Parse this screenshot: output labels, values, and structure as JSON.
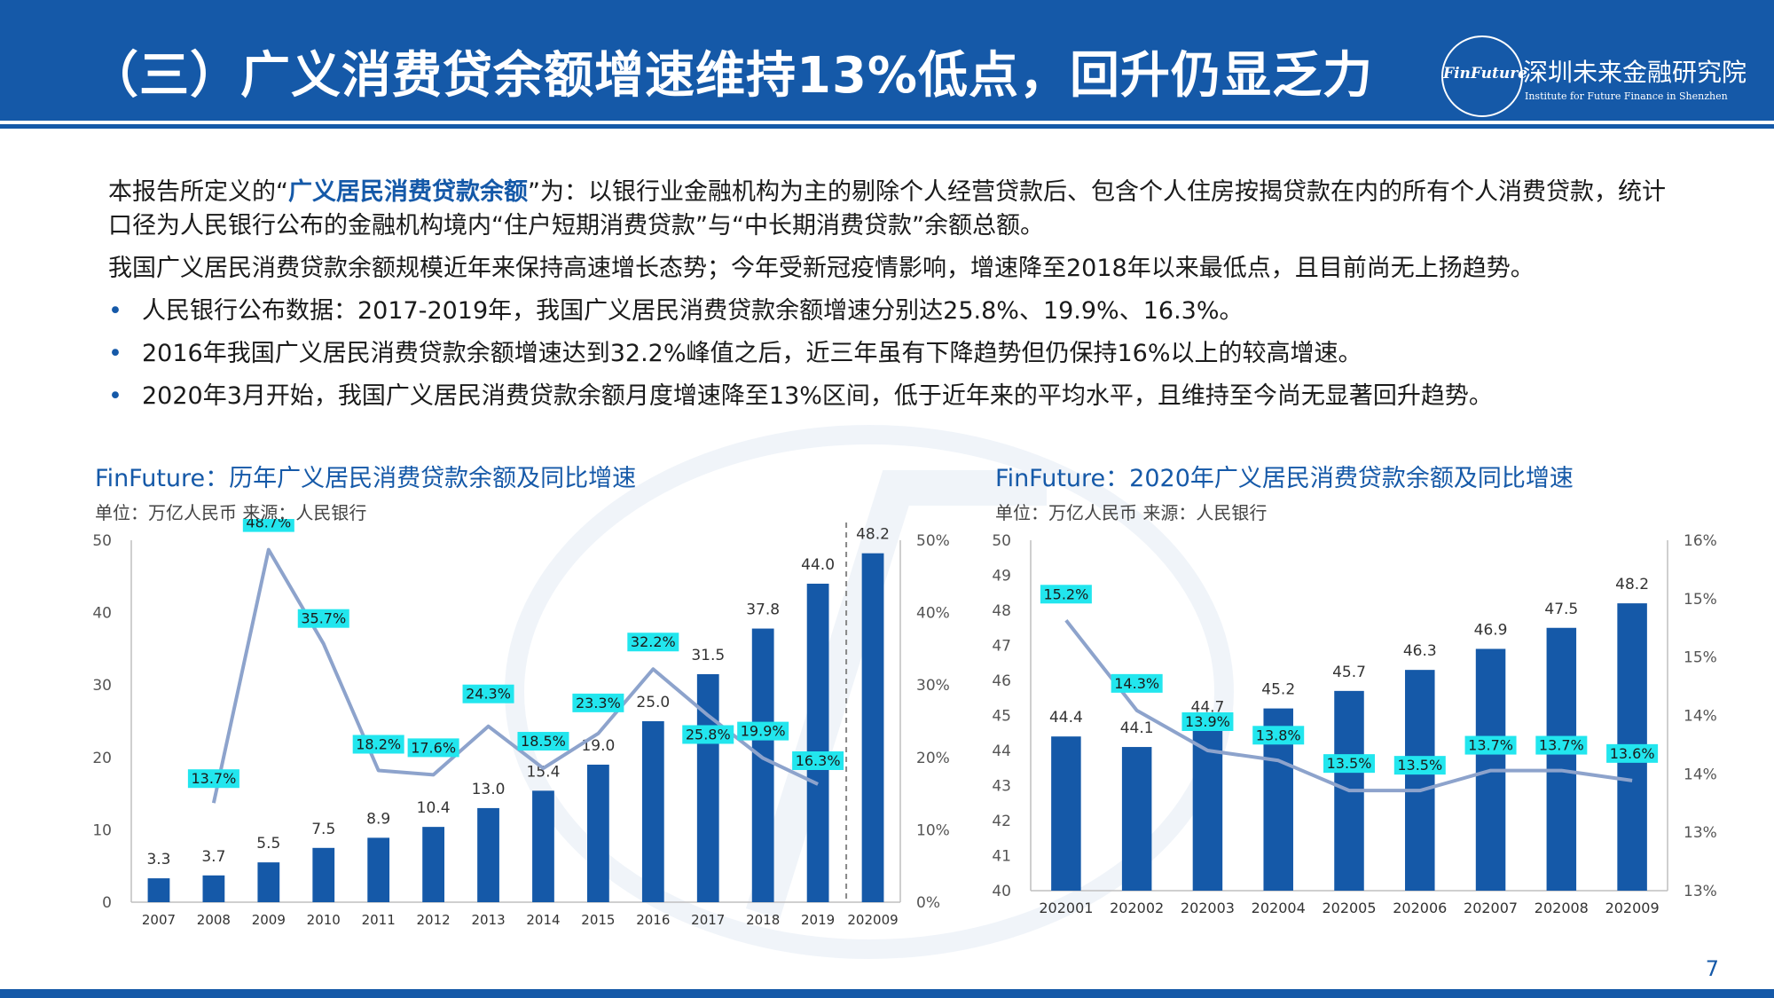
{
  "slide": {
    "title": "（三）广义消费贷余额增速维持13%低点，回升仍显乏力",
    "logo": {
      "mark": "FinFuture",
      "name": "深圳未来金融研究院",
      "subtitle": "Institute for Future Finance in Shenzhen"
    },
    "definition": {
      "prefix": "本报告所定义的“",
      "highlight": "广义居民消费贷款余额",
      "suffix": "”为：以银行业金融机构为主的剔除个人经营贷款后、包含个人住房按揭贷款在内的所有个人消费贷款，统计口径为人民银行公布的金融机构境内“住户短期消费贷款”与“中长期消费贷款”余额总额。"
    },
    "summary": "我国广义居民消费贷款余额规模近年来保持高速增长态势；今年受新冠疫情影响，增速降至2018年以来最低点，且目前尚无上扬趋势。",
    "bullets": [
      "人民银行公布数据：2017-2019年，我国广义居民消费贷款余额增速分别达25.8%、19.9%、16.3%。",
      "2016年我国广义居民消费贷款余额增速达到32.2%峰值之后，近三年虽有下降趋势但仍保持16%以上的较高增速。",
      "2020年3月开始，我国广义居民消费贷款余额月度增速降至13%区间，低于近年来的平均水平，且维持至今尚无显著回升趋势。"
    ],
    "page_number": "7",
    "colors": {
      "brand": "#1559a8",
      "line": "#8da3cc",
      "label_bg": "#22e6ee"
    }
  },
  "chart_data": [
    {
      "type": "bar",
      "title": "FinFuture：历年广义居民消费贷款余额及同比增速",
      "subtitle": "单位：万亿人民币  来源：人民银行",
      "categories": [
        "2007",
        "2008",
        "2009",
        "2010",
        "2011",
        "2012",
        "2013",
        "2014",
        "2015",
        "2016",
        "2017",
        "2018",
        "2019",
        "202009"
      ],
      "series": [
        {
          "name": "余额",
          "type": "bar",
          "axis": "left",
          "values": [
            3.3,
            3.7,
            5.5,
            7.5,
            8.9,
            10.4,
            13.0,
            15.4,
            19.0,
            25.0,
            31.5,
            37.8,
            44.0,
            48.2
          ],
          "labels": [
            "3.3",
            "3.7",
            "5.5",
            "7.5",
            "8.9",
            "10.4",
            "13.0",
            "15.4",
            "19.0",
            "25.0",
            "31.5",
            "37.8",
            "44.0",
            "48.2"
          ]
        },
        {
          "name": "同比增速",
          "type": "line",
          "axis": "right",
          "values": [
            null,
            13.7,
            48.7,
            35.7,
            18.2,
            17.6,
            24.3,
            18.5,
            23.3,
            32.2,
            25.8,
            19.9,
            16.3,
            null
          ],
          "labels": [
            null,
            "13.7%",
            "48.7%",
            "35.7%",
            "18.2%",
            "17.6%",
            "24.3%",
            "18.5%",
            "23.3%",
            "32.2%",
            "25.8%",
            "19.9%",
            "16.3%",
            null
          ]
        }
      ],
      "left_axis": {
        "min": 0,
        "max": 50,
        "ticks": [
          "0",
          "10",
          "20",
          "30",
          "40",
          "50"
        ]
      },
      "right_axis": {
        "min": 0,
        "max": 50,
        "ticks": [
          "0%",
          "10%",
          "20%",
          "30%",
          "40%",
          "50%"
        ]
      },
      "separator_before_last": true
    },
    {
      "type": "bar",
      "title": "FinFuture：2020年广义居民消费贷款余额及同比增速",
      "subtitle": "单位：万亿人民币  来源：人民银行",
      "categories": [
        "202001",
        "202002",
        "202003",
        "202004",
        "202005",
        "202006",
        "202007",
        "202008",
        "202009"
      ],
      "series": [
        {
          "name": "余额",
          "type": "bar",
          "axis": "left",
          "values": [
            44.4,
            44.1,
            44.7,
            45.2,
            45.7,
            46.3,
            46.9,
            47.5,
            48.2
          ],
          "labels": [
            "44.4",
            "44.1",
            "44.7",
            "45.2",
            "45.7",
            "46.3",
            "46.9",
            "47.5",
            "48.2"
          ]
        },
        {
          "name": "同比增速",
          "type": "line",
          "axis": "right",
          "values": [
            15.2,
            14.3,
            13.9,
            13.8,
            13.5,
            13.5,
            13.7,
            13.7,
            13.6
          ],
          "labels": [
            "15.2%",
            "14.3%",
            "13.9%",
            "13.8%",
            "13.5%",
            "13.5%",
            "13.7%",
            "13.7%",
            "13.6%"
          ]
        }
      ],
      "left_axis": {
        "min": 40,
        "max": 50,
        "ticks": [
          "40",
          "41",
          "42",
          "43",
          "44",
          "45",
          "46",
          "47",
          "48",
          "49",
          "50"
        ]
      },
      "right_axis": {
        "min": 12.5,
        "max": 16,
        "ticks": [
          "13%",
          "13%",
          "14%",
          "14%",
          "15%",
          "15%",
          "16%"
        ]
      }
    }
  ]
}
